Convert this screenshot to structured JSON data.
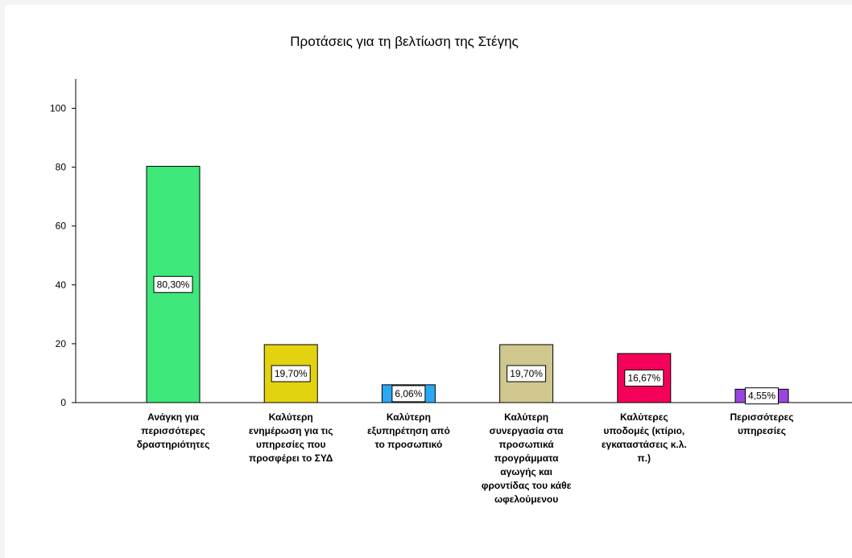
{
  "chart_data": {
    "type": "bar",
    "title": "Προτάσεις για τη βελτίωση της Στέγης",
    "xlabel": "",
    "ylabel": "",
    "ylim": [
      0,
      110
    ],
    "yticks": [
      0,
      20,
      40,
      60,
      80,
      100
    ],
    "grid": false,
    "categories": [
      [
        "Ανάγκη για",
        "περισσότερες",
        "δραστηριότητες"
      ],
      [
        "Καλύτερη",
        "ενημέρωση για τις",
        "υπηρεσίες που",
        "προσφέρει το ΣΥΔ"
      ],
      [
        "Καλύτερη",
        "εξυπηρέτηση από",
        "το προσωπικό"
      ],
      [
        "Καλύτερη",
        "συνεργασία στα",
        "προσωπικά",
        "προγράμματα",
        "αγωγής και",
        "φροντίδας του κάθε",
        "ωφελούμενου"
      ],
      [
        "Καλύτερες",
        "υποδομές (κτίριο,",
        "εγκαταστάσεις κ.λ.",
        "π.)"
      ],
      [
        "Περισσότερες",
        "υπηρεσίες"
      ]
    ],
    "values": [
      80.3,
      19.7,
      6.06,
      19.7,
      16.67,
      4.55
    ],
    "data_labels": [
      "80,30%",
      "19,70%",
      "6,06%",
      "19,70%",
      "16,67%",
      "4,55%"
    ],
    "colors": [
      "#3ee87a",
      "#e3d20e",
      "#2ba8f2",
      "#cfc78e",
      "#f5005a",
      "#9b45e0"
    ]
  }
}
